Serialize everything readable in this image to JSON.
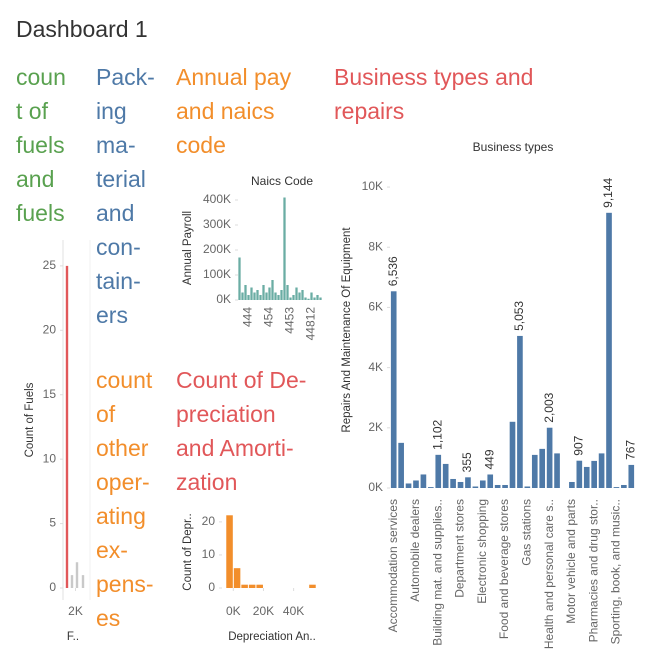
{
  "title": "Dashboard 1",
  "headers": [
    {
      "lines": [
        "coun",
        "t of",
        "fuels",
        "and",
        "fuels"
      ],
      "color": "#59a14f"
    },
    {
      "lines": [
        "Pack-",
        "ing",
        "ma-",
        "terial",
        "and",
        "con-",
        "tain-",
        "ers"
      ],
      "color": "#4e79a7"
    },
    {
      "lines": [
        "Annual pay",
        "and naics",
        "code"
      ],
      "color": "#f28e2b"
    },
    {
      "lines": [
        "Business types and",
        "repairs"
      ],
      "color": "#e15759"
    },
    {
      "lines": [
        "count",
        "of",
        "other",
        "oper-",
        "ating",
        "ex-",
        "pens-",
        "es"
      ],
      "color": "#f28e2b"
    },
    {
      "lines": [
        "Count of De-",
        "preciation",
        "and Amorti-",
        "zation"
      ],
      "color": "#e15759"
    }
  ],
  "chart_data": [
    {
      "type": "bar",
      "y_label": "Count of Fuels",
      "x_label": "F..",
      "x": [
        640,
        1440,
        2240,
        3200
      ],
      "values": [
        25,
        1,
        2,
        1
      ],
      "colors": [
        "#e15759",
        "#c9c9c9",
        "#c9c9c9",
        "#c9c9c9"
      ],
      "xlim": [
        0,
        4000
      ],
      "xticks": [
        {
          "value": 2000,
          "label": "2K"
        }
      ],
      "ylim": [
        0,
        26
      ],
      "yticks": [
        0,
        5,
        10,
        15,
        20,
        25
      ]
    },
    {
      "type": "bar",
      "title": "Naics Code",
      "y_label": "Annual Payroll",
      "categories": [
        null,
        null,
        null,
        "444",
        null,
        null,
        null,
        null,
        null,
        null,
        "454",
        null,
        null,
        null,
        null,
        null,
        null,
        "4453",
        null,
        null,
        null,
        null,
        null,
        null,
        "44812",
        null,
        null,
        null
      ],
      "values": [
        170000,
        30000,
        60000,
        20000,
        50000,
        30000,
        40000,
        20000,
        60000,
        30000,
        50000,
        80000,
        30000,
        20000,
        40000,
        410000,
        60000,
        10000,
        20000,
        50000,
        30000,
        40000,
        10000,
        5000,
        30000,
        10000,
        20000,
        10000
      ],
      "color": "#6aada4",
      "ylim": [
        0,
        432000
      ],
      "yticks": [
        {
          "value": 0,
          "label": "0K"
        },
        {
          "value": 100000,
          "label": "100K"
        },
        {
          "value": 200000,
          "label": "200K"
        },
        {
          "value": 300000,
          "label": "300K"
        },
        {
          "value": 400000,
          "label": "400K"
        }
      ]
    },
    {
      "type": "histogram",
      "y_label": "Count of Depr..",
      "x_label": "Depreciation An..",
      "bins": [
        -5000,
        0,
        5000,
        10000,
        15000,
        20000,
        25000,
        30000,
        35000,
        40000,
        45000,
        50000,
        55000
      ],
      "counts": [
        22,
        6,
        1,
        1,
        1,
        0,
        0,
        0,
        0,
        0,
        0,
        1
      ],
      "color": "#f28e2b",
      "xlim": [
        -7500,
        57500
      ],
      "xticks": [
        {
          "value": 0,
          "label": "0K"
        },
        {
          "value": 20000,
          "label": "20K"
        },
        {
          "value": 40000,
          "label": "40K"
        }
      ],
      "ylim": [
        0,
        23.6
      ],
      "yticks": [
        0,
        10,
        20
      ]
    },
    {
      "type": "bar",
      "title": "Business types",
      "y_label": "Repairs And Maintenance Of Equipment",
      "categories": [
        "Accommodation services",
        null,
        null,
        "Automobile dealers",
        null,
        null,
        "Building mat. and supplies..",
        null,
        null,
        "Department stores",
        null,
        null,
        "Electronic shopping",
        null,
        null,
        "Food and beverage stores",
        null,
        null,
        "Gas stations",
        null,
        null,
        "Health and personal care s..",
        null,
        null,
        "Motor vehicle and parts",
        null,
        null,
        "Pharmacies and drug stor..",
        null,
        null,
        "Sporting, book, and music..",
        null,
        null
      ],
      "values": [
        6536,
        1500,
        150,
        250,
        450,
        30,
        1102,
        800,
        300,
        200,
        355,
        50,
        250,
        449,
        100,
        100,
        2200,
        5053,
        50,
        1100,
        1300,
        2003,
        1150,
        0,
        200,
        907,
        700,
        900,
        1150,
        9144,
        30,
        100,
        767
      ],
      "value_labels": [
        "6,536",
        null,
        null,
        null,
        null,
        null,
        "1,102",
        null,
        null,
        null,
        "355",
        null,
        null,
        "449",
        null,
        null,
        null,
        "5,053",
        null,
        null,
        null,
        "2,003",
        null,
        null,
        null,
        "907",
        null,
        null,
        null,
        "9,144",
        null,
        null,
        "767"
      ],
      "color": "#4e79a7",
      "ylim": [
        0,
        10500
      ],
      "yticks": [
        {
          "value": 0,
          "label": "0K"
        },
        {
          "value": 2000,
          "label": "2K"
        },
        {
          "value": 4000,
          "label": "4K"
        },
        {
          "value": 6000,
          "label": "6K"
        },
        {
          "value": 8000,
          "label": "8K"
        },
        {
          "value": 10000,
          "label": "10K"
        }
      ]
    }
  ]
}
